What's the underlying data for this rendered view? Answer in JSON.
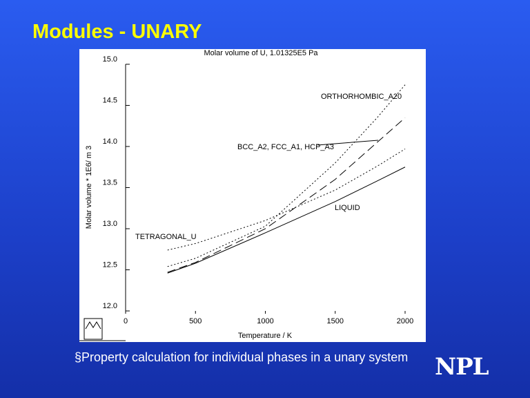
{
  "slide": {
    "title": "Modules - UNARY",
    "bullet": "§Property calculation for individual phases in a unary system",
    "logo": "NPL"
  },
  "chart_data": {
    "type": "line",
    "title": "Molar volume of U, 1.01325E5 Pa",
    "x_label": "Temperature / K",
    "y_label": "Molar volume * 1E6/ m 3",
    "x": [
      300,
      500,
      1000,
      1500,
      1800,
      2000
    ],
    "series": [
      {
        "name": "LIQUID",
        "color": "#000000",
        "style": "solid",
        "values": [
          12.46,
          12.58,
          12.95,
          13.33,
          13.58,
          13.75
        ]
      },
      {
        "name": "TETRAGONAL_U",
        "color": "#000000",
        "style": "dotted",
        "values": [
          12.74,
          12.82,
          13.1,
          13.47,
          13.76,
          13.97
        ]
      },
      {
        "name": "ORTHORHOMBIC_A20",
        "color": "#000000",
        "style": "dotted",
        "values": [
          12.54,
          12.64,
          13.03,
          13.8,
          14.35,
          14.75
        ]
      },
      {
        "name": "BCC_A2, FCC_A1, HCP_A3",
        "color": "#000000",
        "style": "dashed",
        "values": [
          12.47,
          12.59,
          13.0,
          13.6,
          14.05,
          14.35
        ]
      }
    ],
    "xlim": [
      0,
      2000
    ],
    "xticks": [
      0,
      500,
      1000,
      1500,
      2000
    ],
    "ylim": [
      12,
      15
    ],
    "yticks": [
      {
        "value": 12,
        "label": "12.0"
      },
      12.5,
      {
        "value": 13,
        "label": "13.0"
      },
      13.5,
      {
        "value": 14,
        "label": "14.0"
      },
      14.5,
      {
        "value": 15,
        "label": "15.0"
      }
    ]
  }
}
